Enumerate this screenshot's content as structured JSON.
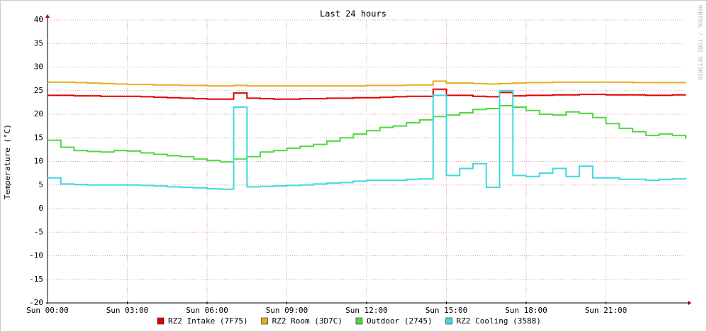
{
  "chart_data": {
    "type": "line",
    "title": "Last 24 hours",
    "y_label": "Temperature (°C)",
    "watermark": "RRDTOOL / TOBI OETIKER",
    "x": [
      0,
      0.5,
      1,
      1.5,
      2,
      2.5,
      3,
      3.5,
      4,
      4.5,
      5,
      5.5,
      6,
      6.5,
      7,
      7.5,
      8,
      8.5,
      9,
      9.5,
      10,
      10.5,
      11,
      11.5,
      12,
      12.5,
      13,
      13.5,
      14,
      14.5,
      15,
      15.5,
      16,
      16.5,
      17,
      17.5,
      18,
      18.5,
      19,
      19.5,
      20,
      20.5,
      21,
      21.5,
      22,
      22.5,
      23,
      23.5,
      24
    ],
    "xlim": [
      0,
      24
    ],
    "xticks": [
      {
        "value": 0,
        "label": "Sun 00:00"
      },
      {
        "value": 3,
        "label": "Sun 03:00"
      },
      {
        "value": 6,
        "label": "Sun 06:00"
      },
      {
        "value": 9,
        "label": "Sun 09:00"
      },
      {
        "value": 12,
        "label": "Sun 12:00"
      },
      {
        "value": 15,
        "label": "Sun 15:00"
      },
      {
        "value": 18,
        "label": "Sun 18:00"
      },
      {
        "value": 21,
        "label": "Sun 21:00"
      }
    ],
    "ylim": [
      -20,
      40
    ],
    "yticks": [
      -20,
      -15,
      -10,
      -5,
      0,
      5,
      10,
      15,
      20,
      25,
      30,
      35,
      40
    ],
    "grid": true,
    "series": [
      {
        "name": "RZ2 Intake (7F75)",
        "color": "#e00000",
        "values": [
          24,
          24,
          23.9,
          23.9,
          23.8,
          23.8,
          23.8,
          23.7,
          23.6,
          23.5,
          23.4,
          23.3,
          23.2,
          23.2,
          24.5,
          23.4,
          23.3,
          23.2,
          23.2,
          23.3,
          23.3,
          23.4,
          23.4,
          23.5,
          23.5,
          23.6,
          23.7,
          23.8,
          23.8,
          25.3,
          24,
          24,
          23.8,
          23.7,
          24.6,
          23.9,
          24,
          24,
          24.1,
          24.1,
          24.2,
          24.2,
          24.1,
          24.1,
          24.1,
          24,
          24,
          24.1,
          24.1
        ]
      },
      {
        "name": "RZ2 Room (3D7C)",
        "color": "#e0b020",
        "values": [
          26.8,
          26.8,
          26.7,
          26.6,
          26.5,
          26.4,
          26.3,
          26.3,
          26.2,
          26.2,
          26.1,
          26.1,
          26,
          26,
          26.1,
          26,
          26,
          26,
          26,
          26,
          26,
          26,
          26,
          26,
          26.1,
          26.1,
          26.1,
          26.2,
          26.2,
          27,
          26.6,
          26.6,
          26.5,
          26.4,
          26.5,
          26.6,
          26.7,
          26.7,
          26.8,
          26.8,
          26.8,
          26.8,
          26.8,
          26.8,
          26.7,
          26.7,
          26.7,
          26.7,
          26.8
        ]
      },
      {
        "name": "Outdoor (2745)",
        "color": "#50d840",
        "values": [
          14.5,
          13,
          12.3,
          12.1,
          12,
          12.3,
          12.2,
          11.8,
          11.5,
          11.2,
          11,
          10.5,
          10.2,
          9.9,
          10.5,
          11,
          12,
          12.3,
          12.8,
          13.2,
          13.6,
          14.3,
          15,
          15.8,
          16.5,
          17.2,
          17.5,
          18.2,
          18.8,
          19.5,
          19.8,
          20.3,
          21,
          21.2,
          21.8,
          21.5,
          20.8,
          20,
          19.8,
          20.5,
          20.2,
          19.3,
          18,
          17,
          16.3,
          15.5,
          15.8,
          15.5,
          14.8
        ]
      },
      {
        "name": "RZ2 Cooling (3588)",
        "color": "#40d8e0",
        "values": [
          6.5,
          5.2,
          5.1,
          5,
          5,
          5,
          5,
          4.9,
          4.8,
          4.6,
          4.5,
          4.4,
          4.2,
          4.1,
          21.5,
          4.6,
          4.7,
          4.8,
          4.9,
          5,
          5.2,
          5.4,
          5.5,
          5.8,
          6,
          6,
          6,
          6.2,
          6.3,
          24,
          7,
          8.5,
          9.5,
          4.5,
          25,
          7,
          6.8,
          7.5,
          8.5,
          6.8,
          9,
          6.5,
          6.5,
          6.2,
          6.2,
          6,
          6.2,
          6.3,
          6.5
        ]
      }
    ]
  }
}
